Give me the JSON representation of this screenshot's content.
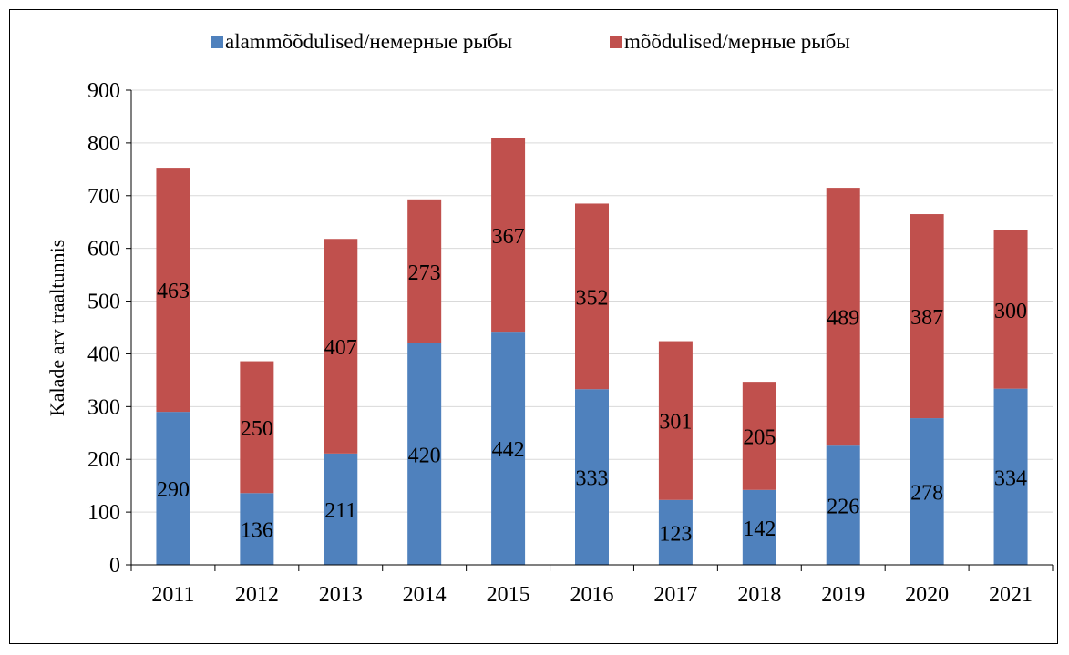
{
  "chart_data": {
    "type": "bar",
    "stacked": true,
    "categories": [
      "2011",
      "2012",
      "2013",
      "2014",
      "2015",
      "2016",
      "2017",
      "2018",
      "2019",
      "2020",
      "2021"
    ],
    "series": [
      {
        "name": "alammõõdulised/немерные рыбы",
        "color": "#4f81bd",
        "values": [
          290,
          136,
          211,
          420,
          442,
          333,
          123,
          142,
          226,
          278,
          334
        ]
      },
      {
        "name": "mõõdulised/мерные рыбы",
        "color": "#c0504d",
        "values": [
          463,
          250,
          407,
          273,
          367,
          352,
          301,
          205,
          489,
          387,
          300
        ]
      }
    ],
    "ylabel": "Kalade arv traaltunnis",
    "xlabel": "",
    "ylim": [
      0,
      900
    ],
    "yticks": [
      0,
      100,
      200,
      300,
      400,
      500,
      600,
      700,
      800,
      900
    ],
    "grid": true,
    "legend": "top"
  }
}
